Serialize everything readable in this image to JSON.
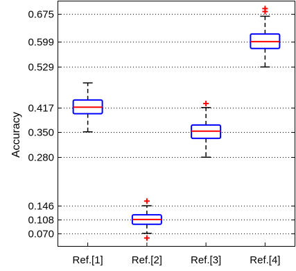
{
  "chart_data": {
    "type": "box",
    "title": "",
    "xlabel": "",
    "ylabel": "Accuracy",
    "ylim": [
      0.035,
      0.71
    ],
    "grid": "horizontal dotted lines at y-ticks",
    "yticks": [
      0.07,
      0.108,
      0.146,
      0.28,
      0.35,
      0.417,
      0.529,
      0.599,
      0.675
    ],
    "ytick_labels": [
      "0.070",
      "0.108",
      "0.146",
      "0.280",
      "0.350",
      "0.417",
      "0.529",
      "0.599",
      "0.675"
    ],
    "categories": [
      "Ref.[1]",
      "Ref.[2]",
      "Ref.[3]",
      "Ref.[4]"
    ],
    "boxes": [
      {
        "whisker_low": 0.35,
        "q1": 0.4,
        "median": 0.418,
        "q3": 0.438,
        "whisker_high": 0.485,
        "outliers": []
      },
      {
        "whisker_low": 0.07,
        "q1": 0.095,
        "median": 0.108,
        "q3": 0.121,
        "whisker_high": 0.146,
        "outliers": [
          0.159,
          0.057
        ]
      },
      {
        "whisker_low": 0.28,
        "q1": 0.332,
        "median": 0.352,
        "q3": 0.369,
        "whisker_high": 0.417,
        "outliers": [
          0.428
        ]
      },
      {
        "whisker_low": 0.529,
        "q1": 0.58,
        "median": 0.599,
        "q3": 0.62,
        "whisker_high": 0.669,
        "outliers": [
          0.682,
          0.69
        ]
      }
    ],
    "colors": {
      "box": "#0000ff",
      "median": "#ff0000",
      "outlier": "#ff0000",
      "whisker": "#000000",
      "grid": "#000000"
    }
  }
}
